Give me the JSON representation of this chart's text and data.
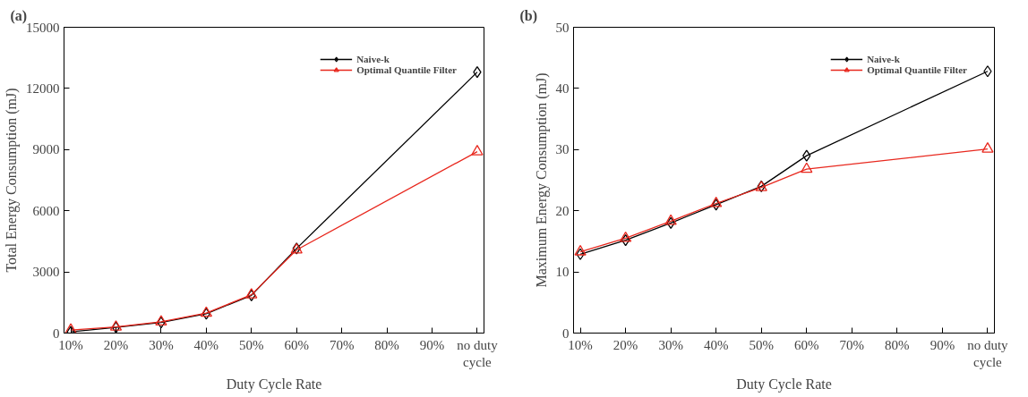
{
  "chart_data": [
    {
      "type": "line",
      "title": "(a)",
      "xlabel": "Duty Cycle Rate",
      "ylabel": "Total Energy Consumption (mJ)",
      "categories": [
        "10%",
        "20%",
        "30%",
        "40%",
        "50%",
        "60%",
        "70%",
        "80%",
        "90%",
        "no duty\ncycle"
      ],
      "ylim": [
        0,
        15000
      ],
      "yticks": [
        0,
        3000,
        6000,
        9000,
        12000,
        15000
      ],
      "grid": false,
      "legend": "top right",
      "series": [
        {
          "name": "Naive-k",
          "color": "#000000",
          "marker": "diamond",
          "values": [
            60,
            280,
            520,
            950,
            1850,
            4150,
            null,
            null,
            null,
            12800
          ]
        },
        {
          "name": "Optimal Quantile Filter",
          "color": "#e8281e",
          "marker": "triangle",
          "values": [
            150,
            300,
            550,
            980,
            1880,
            4080,
            null,
            null,
            null,
            8900
          ]
        }
      ]
    },
    {
      "type": "line",
      "title": "(b)",
      "xlabel": "Duty Cycle Rate",
      "ylabel": "Maximum Energy Consumption (mJ)",
      "categories": [
        "10%",
        "20%",
        "30%",
        "40%",
        "50%",
        "60%",
        "70%",
        "80%",
        "90%",
        "no duty\ncycle"
      ],
      "ylim": [
        0,
        50
      ],
      "yticks": [
        0,
        10,
        20,
        30,
        40,
        50
      ],
      "grid": false,
      "legend": "top right",
      "series": [
        {
          "name": "Naive-k",
          "color": "#000000",
          "marker": "diamond",
          "values": [
            12.9,
            15.2,
            18,
            21,
            24,
            29,
            null,
            null,
            null,
            42.8
          ]
        },
        {
          "name": "Optimal Quantile Filter",
          "color": "#e8281e",
          "marker": "triangle",
          "values": [
            13.3,
            15.5,
            18.3,
            21.2,
            23.8,
            26.8,
            null,
            null,
            null,
            30.1
          ]
        }
      ]
    }
  ]
}
